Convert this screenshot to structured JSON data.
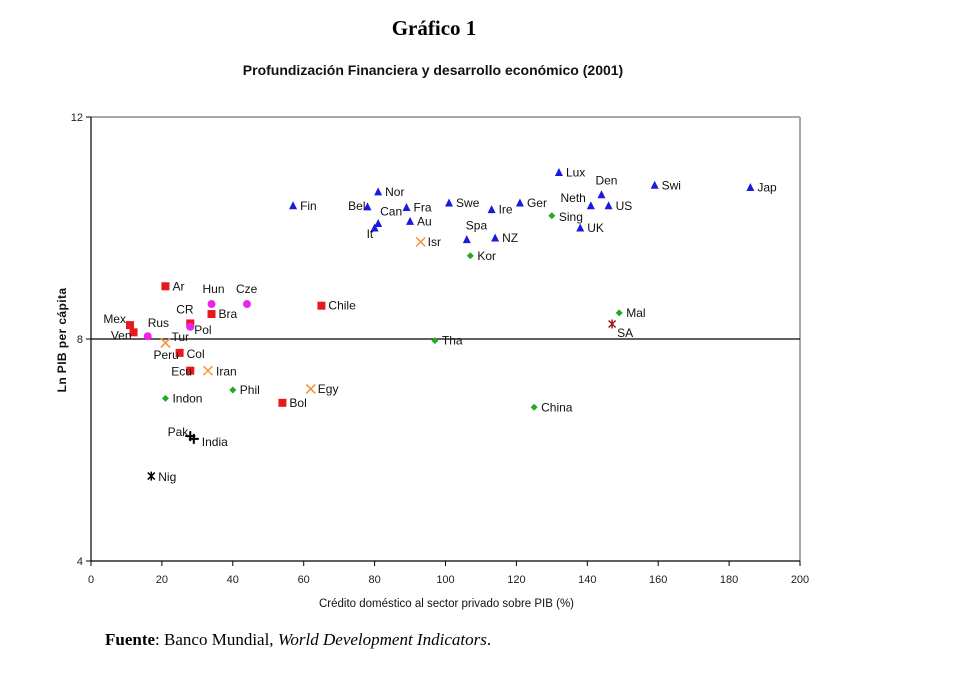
{
  "figure": {
    "title": "Gráfico 1",
    "source_label": "Fuente",
    "source_text": ": Banco Mundial, ",
    "source_italic": "World Development Indicators",
    "source_end": "."
  },
  "chart_data": {
    "type": "scatter",
    "title": "Profundización Financiera y desarrollo económico (2001)",
    "xlabel": "Crédito doméstico al sector privado sobre PIB (%)",
    "ylabel": "Ln PIB per cápita",
    "xlim": [
      0,
      200
    ],
    "ylim": [
      4,
      12
    ],
    "xticks": [
      0,
      20,
      40,
      60,
      80,
      100,
      120,
      140,
      160,
      180,
      200
    ],
    "yticks": [
      4,
      8,
      12
    ],
    "reference_line_y": 8,
    "grid": false,
    "legend": "none",
    "series": [
      {
        "name": "triangle-blue",
        "marker": "triangle",
        "color": "#1a1adc",
        "points": [
          {
            "label": "Fin",
            "x": 57,
            "y": 10.4
          },
          {
            "label": "Bel",
            "x": 78,
            "y": 10.38
          },
          {
            "label": "Nor",
            "x": 81,
            "y": 10.65
          },
          {
            "label": "Can",
            "x": 81,
            "y": 10.08
          },
          {
            "label": "It",
            "x": 80,
            "y": 10.0
          },
          {
            "label": "Fra",
            "x": 89,
            "y": 10.37
          },
          {
            "label": "Au",
            "x": 90,
            "y": 10.12
          },
          {
            "label": "Swe",
            "x": 101,
            "y": 10.45
          },
          {
            "label": "Spa",
            "x": 106,
            "y": 9.79
          },
          {
            "label": "Ire",
            "x": 113,
            "y": 10.33
          },
          {
            "label": "NZ",
            "x": 114,
            "y": 9.82
          },
          {
            "label": "Ger",
            "x": 121,
            "y": 10.45
          },
          {
            "label": "Lux",
            "x": 132,
            "y": 11.0
          },
          {
            "label": "UK",
            "x": 138,
            "y": 10.0
          },
          {
            "label": "Neth",
            "x": 141,
            "y": 10.4
          },
          {
            "label": "Den",
            "x": 144,
            "y": 10.6
          },
          {
            "label": "US",
            "x": 146,
            "y": 10.4
          },
          {
            "label": "Swi",
            "x": 159,
            "y": 10.77
          },
          {
            "label": "Jap",
            "x": 186,
            "y": 10.73
          }
        ]
      },
      {
        "name": "square-red",
        "marker": "square",
        "color": "#e8191d",
        "points": [
          {
            "label": "Mex",
            "x": 11,
            "y": 8.25
          },
          {
            "label": "Ven",
            "x": 12,
            "y": 8.12
          },
          {
            "label": "Ar",
            "x": 21,
            "y": 8.95
          },
          {
            "label": "Col",
            "x": 25,
            "y": 7.75
          },
          {
            "label": "Ecu",
            "x": 28,
            "y": 7.43
          },
          {
            "label": "CR",
            "x": 28,
            "y": 8.28
          },
          {
            "label": "Bra",
            "x": 34,
            "y": 8.45
          },
          {
            "label": "Bol",
            "x": 54,
            "y": 6.85
          },
          {
            "label": "Chile",
            "x": 65,
            "y": 8.6
          }
        ]
      },
      {
        "name": "circle-magenta",
        "marker": "circle",
        "color": "#ee22ee",
        "points": [
          {
            "label": "Rus",
            "x": 16,
            "y": 8.05
          },
          {
            "label": "Pol",
            "x": 28,
            "y": 8.22
          },
          {
            "label": "Hun",
            "x": 34,
            "y": 8.63
          },
          {
            "label": "Cze",
            "x": 44,
            "y": 8.63
          }
        ]
      },
      {
        "name": "x-orange",
        "marker": "x",
        "color": "#f0943a",
        "points": [
          {
            "label": "Tur",
            "x": 21,
            "y": 7.93
          },
          {
            "label": "Peru",
            "x": 21,
            "y": 7.93
          },
          {
            "label": "Iran",
            "x": 33,
            "y": 7.43
          },
          {
            "label": "Egy",
            "x": 62,
            "y": 7.1
          },
          {
            "label": "Isr",
            "x": 93,
            "y": 9.75
          }
        ]
      },
      {
        "name": "diamond-green",
        "marker": "diamond",
        "color": "#22aa22",
        "points": [
          {
            "label": "Indon",
            "x": 21,
            "y": 6.93
          },
          {
            "label": "Phil",
            "x": 40,
            "y": 7.08
          },
          {
            "label": "Tha",
            "x": 97,
            "y": 7.97
          },
          {
            "label": "Kor",
            "x": 107,
            "y": 9.5
          },
          {
            "label": "China",
            "x": 125,
            "y": 6.77
          },
          {
            "label": "Sing",
            "x": 130,
            "y": 10.22
          },
          {
            "label": "Mal",
            "x": 149,
            "y": 8.47
          }
        ]
      },
      {
        "name": "star-darkred",
        "marker": "star",
        "color": "#a01818",
        "points": [
          {
            "label": "SA",
            "x": 147,
            "y": 8.27
          }
        ]
      },
      {
        "name": "plus-black",
        "marker": "plus",
        "color": "#000000",
        "points": [
          {
            "label": "Pak",
            "x": 28,
            "y": 6.25
          },
          {
            "label": "India",
            "x": 29,
            "y": 6.2
          }
        ]
      },
      {
        "name": "star-black",
        "marker": "star",
        "color": "#000000",
        "points": [
          {
            "label": "Nig",
            "x": 17,
            "y": 5.53
          }
        ]
      }
    ]
  }
}
